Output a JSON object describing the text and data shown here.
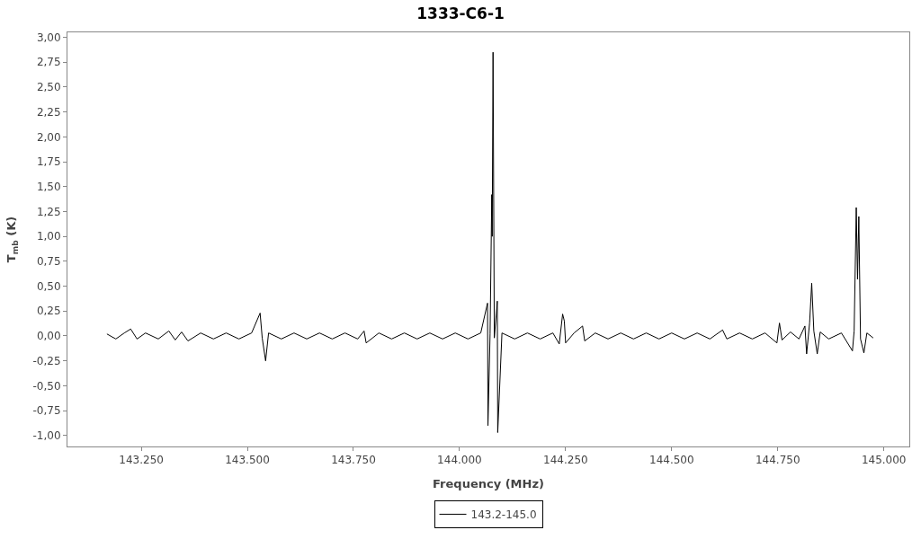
{
  "chart_data": {
    "type": "line",
    "title": "1333-C6-1",
    "xlabel": "Frequency (MHz)",
    "ylabel": "T$_{mb}$ (K)",
    "xlim": [
      143076,
      145060
    ],
    "xticks": [
      {
        "value": 143250,
        "label": "143.250"
      },
      {
        "value": 143500,
        "label": "143.500"
      },
      {
        "value": 143750,
        "label": "143.750"
      },
      {
        "value": 144000,
        "label": "144.000"
      },
      {
        "value": 144250,
        "label": "144.250"
      },
      {
        "value": 144500,
        "label": "144.500"
      },
      {
        "value": 144750,
        "label": "144.750"
      },
      {
        "value": 145000,
        "label": "145.000"
      }
    ],
    "ylim": [
      -1.11,
      3.05
    ],
    "yticks": [
      {
        "value": -1.0,
        "label": "-1,00"
      },
      {
        "value": -0.75,
        "label": "-0,75"
      },
      {
        "value": -0.5,
        "label": "-0,50"
      },
      {
        "value": -0.25,
        "label": "-0,25"
      },
      {
        "value": 0.0,
        "label": "0,00"
      },
      {
        "value": 0.25,
        "label": "0,25"
      },
      {
        "value": 0.5,
        "label": "0,50"
      },
      {
        "value": 0.75,
        "label": "0,75"
      },
      {
        "value": 1.0,
        "label": "1,00"
      },
      {
        "value": 1.25,
        "label": "1,25"
      },
      {
        "value": 1.5,
        "label": "1,50"
      },
      {
        "value": 1.75,
        "label": "1,75"
      },
      {
        "value": 2.0,
        "label": "2,00"
      },
      {
        "value": 2.25,
        "label": "2,25"
      },
      {
        "value": 2.5,
        "label": "2,50"
      },
      {
        "value": 2.75,
        "label": "2,75"
      },
      {
        "value": 3.0,
        "label": "3,00"
      }
    ],
    "grid": false,
    "legend": "bottom",
    "marker": "none",
    "line_style": "solid",
    "series": [
      {
        "name": "143.2-145.0",
        "color": "#000000",
        "x": [
          143169,
          143190,
          143210,
          143225,
          143240,
          143260,
          143290,
          143315,
          143330,
          143345,
          143360,
          143390,
          143420,
          143450,
          143480,
          143510,
          143530,
          143535,
          143543,
          143550,
          143580,
          143610,
          143640,
          143670,
          143700,
          143730,
          143760,
          143775,
          143780,
          143810,
          143840,
          143870,
          143900,
          143930,
          143960,
          143990,
          144020,
          144050,
          144066,
          144067,
          144072,
          144076,
          144077,
          144079,
          144082,
          144089,
          144090,
          144100,
          144130,
          144160,
          144190,
          144220,
          144235,
          144243,
          144247,
          144250,
          144270,
          144290,
          144295,
          144320,
          144350,
          144380,
          144410,
          144440,
          144470,
          144500,
          144530,
          144560,
          144590,
          144620,
          144630,
          144660,
          144690,
          144720,
          144748,
          144754,
          144760,
          144780,
          144800,
          144814,
          144818,
          144825,
          144830,
          144835,
          144843,
          144850,
          144870,
          144900,
          144926,
          144930,
          144935,
          144938,
          144941,
          144945,
          144953,
          144960,
          144975
        ],
        "values": [
          0.02,
          -0.03,
          0.03,
          0.07,
          -0.03,
          0.03,
          -0.03,
          0.05,
          -0.04,
          0.04,
          -0.05,
          0.03,
          -0.03,
          0.03,
          -0.03,
          0.03,
          0.23,
          -0.02,
          -0.25,
          0.03,
          -0.03,
          0.03,
          -0.03,
          0.03,
          -0.03,
          0.03,
          -0.03,
          0.05,
          -0.07,
          0.03,
          -0.03,
          0.03,
          -0.03,
          0.03,
          -0.03,
          0.03,
          -0.03,
          0.03,
          0.33,
          -0.9,
          0.02,
          1.42,
          1.0,
          2.85,
          -0.02,
          0.35,
          -0.97,
          0.03,
          -0.03,
          0.03,
          -0.03,
          0.03,
          -0.08,
          0.22,
          0.15,
          -0.07,
          0.03,
          0.1,
          -0.05,
          0.03,
          -0.03,
          0.03,
          -0.03,
          0.03,
          -0.03,
          0.03,
          -0.03,
          0.03,
          -0.03,
          0.06,
          -0.03,
          0.03,
          -0.03,
          0.03,
          -0.07,
          0.13,
          -0.04,
          0.04,
          -0.03,
          0.1,
          -0.18,
          0.13,
          0.53,
          0.05,
          -0.18,
          0.04,
          -0.03,
          0.03,
          -0.15,
          0.05,
          1.29,
          0.57,
          1.2,
          -0.03,
          -0.17,
          0.03,
          -0.02
        ]
      }
    ]
  }
}
